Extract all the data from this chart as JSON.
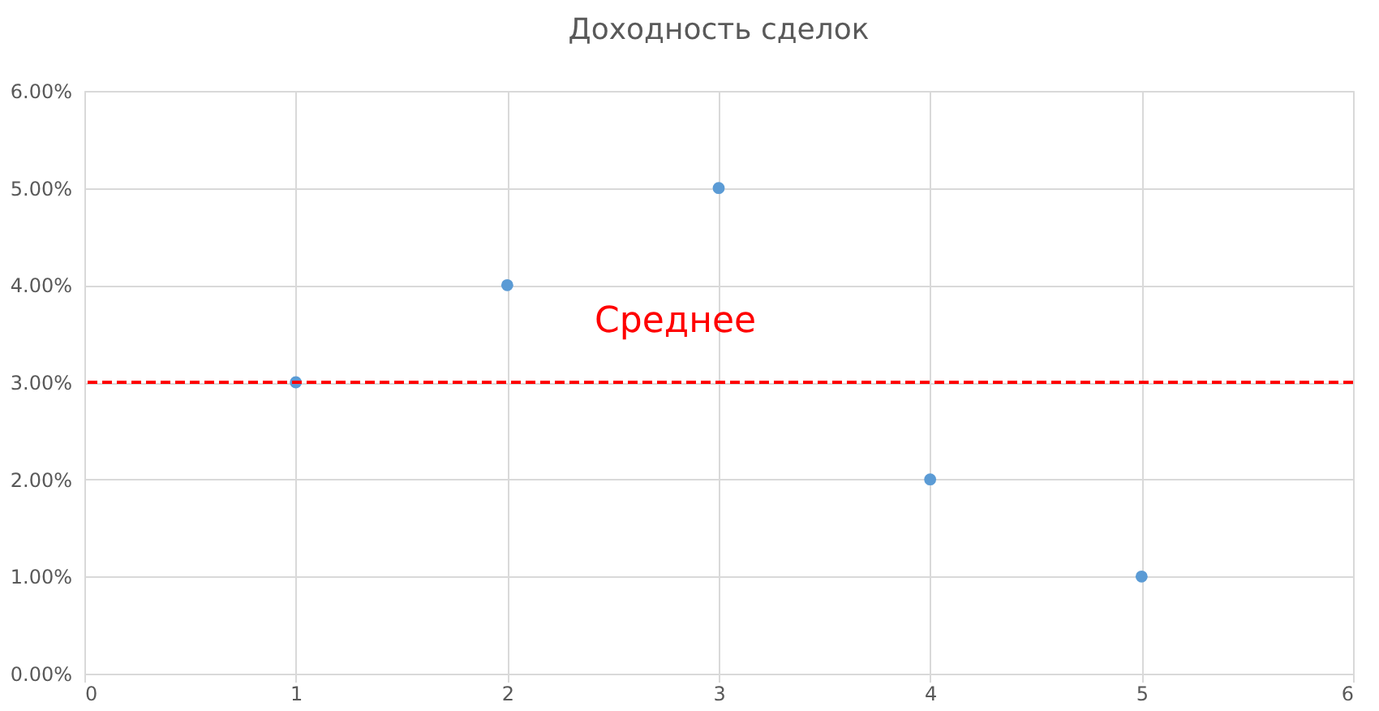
{
  "chart_data": {
    "type": "scatter",
    "title": "Доходность сделок",
    "x": [
      1,
      2,
      3,
      4,
      5
    ],
    "series": [
      {
        "color": "#5b9bd5",
        "values": [
          3,
          4,
          5,
          2,
          1
        ]
      }
    ],
    "xlim": [
      0,
      6
    ],
    "xticks": [
      0,
      1,
      2,
      3,
      4,
      5,
      6
    ],
    "ylim": [
      0,
      6
    ],
    "yticks": [
      {
        "value": 0,
        "label": "0.00%"
      },
      {
        "value": 1,
        "label": "1.00%"
      },
      {
        "value": 2,
        "label": "2.00%"
      },
      {
        "value": 3,
        "label": "3.00%"
      },
      {
        "value": 4,
        "label": "4.00%"
      },
      {
        "value": 5,
        "label": "5.00%"
      },
      {
        "value": 6,
        "label": "6.00%"
      }
    ],
    "ref_lines": [
      {
        "axis": "y",
        "value": 3,
        "label": "Среднее",
        "color": "#ff0000",
        "line_style": "dashed"
      }
    ],
    "grid": true,
    "legend": false,
    "marker": "circle"
  }
}
